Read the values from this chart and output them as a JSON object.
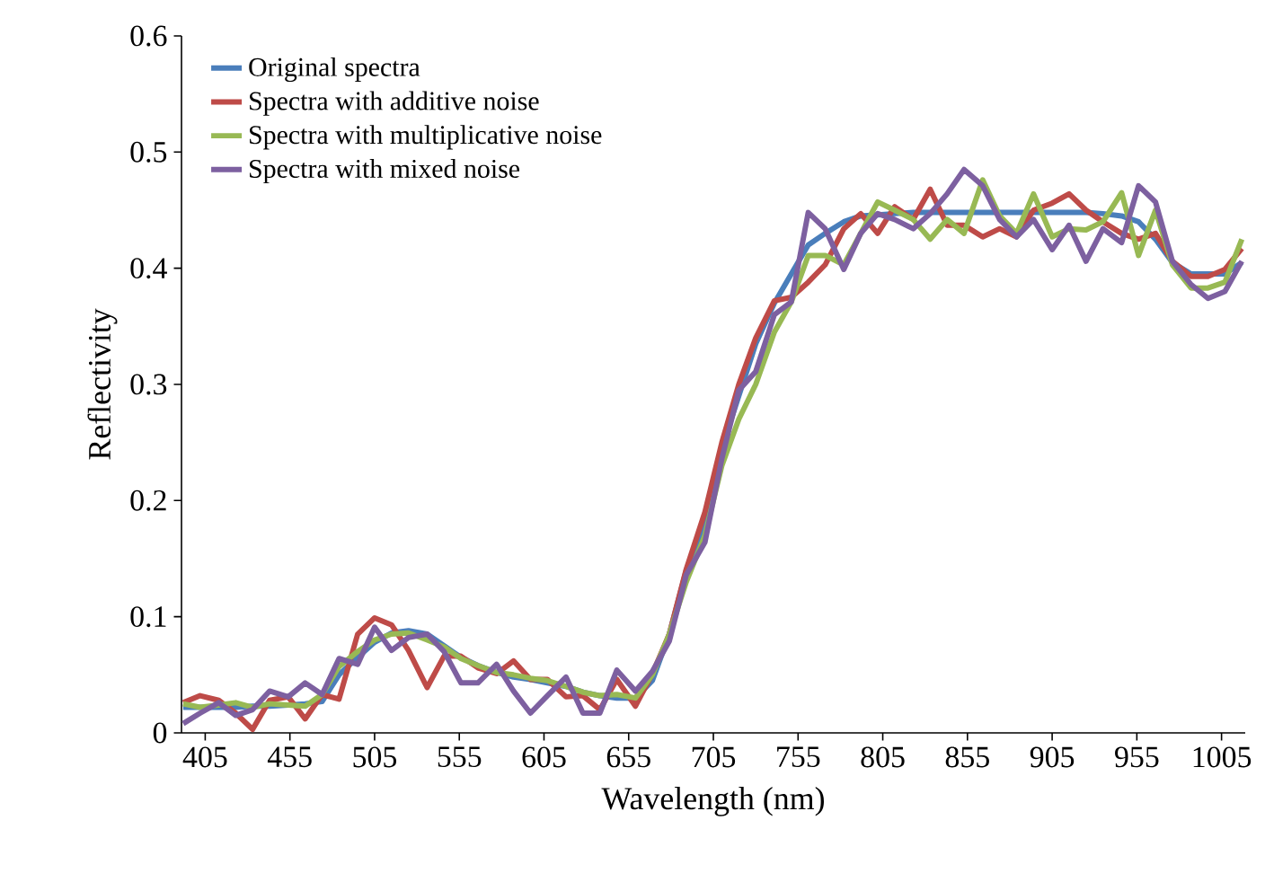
{
  "chart_data": {
    "type": "line",
    "xlabel": "Wavelength (nm)",
    "ylabel": "Reflectivity",
    "x": [
      392,
      402,
      413,
      423,
      433,
      443,
      454,
      464,
      474,
      484,
      495,
      505,
      515,
      525,
      536,
      546,
      556,
      566,
      577,
      587,
      597,
      607,
      618,
      628,
      638,
      648,
      659,
      669,
      679,
      689,
      700,
      710,
      720,
      730,
      741,
      751,
      761,
      771,
      782,
      792,
      802,
      812,
      823,
      833,
      843,
      853,
      864,
      874,
      884,
      894,
      905,
      915,
      925,
      935,
      946,
      956,
      966,
      976,
      987,
      997,
      1007,
      1017
    ],
    "series": [
      {
        "name": "Original spectra",
        "color": "#4a7ebb",
        "values": [
          0.022,
          0.022,
          0.022,
          0.022,
          0.023,
          0.023,
          0.024,
          0.025,
          0.027,
          0.05,
          0.065,
          0.078,
          0.086,
          0.088,
          0.085,
          0.075,
          0.065,
          0.058,
          0.052,
          0.048,
          0.046,
          0.043,
          0.04,
          0.035,
          0.032,
          0.03,
          0.03,
          0.045,
          0.085,
          0.14,
          0.18,
          0.245,
          0.29,
          0.335,
          0.37,
          0.395,
          0.42,
          0.43,
          0.44,
          0.445,
          0.446,
          0.447,
          0.448,
          0.448,
          0.448,
          0.448,
          0.448,
          0.448,
          0.448,
          0.448,
          0.448,
          0.448,
          0.448,
          0.447,
          0.445,
          0.44,
          0.425,
          0.405,
          0.395,
          0.395,
          0.395,
          0.405
        ]
      },
      {
        "name": "Spectra with additive noise",
        "color": "#be4b48",
        "values": [
          0.026,
          0.032,
          0.028,
          0.017,
          0.003,
          0.028,
          0.031,
          0.012,
          0.033,
          0.029,
          0.085,
          0.099,
          0.093,
          0.071,
          0.039,
          0.066,
          0.066,
          0.056,
          0.051,
          0.062,
          0.046,
          0.046,
          0.031,
          0.032,
          0.02,
          0.046,
          0.023,
          0.051,
          0.085,
          0.141,
          0.19,
          0.25,
          0.3,
          0.34,
          0.372,
          0.375,
          0.388,
          0.403,
          0.434,
          0.447,
          0.43,
          0.453,
          0.442,
          0.468,
          0.437,
          0.437,
          0.427,
          0.434,
          0.427,
          0.45,
          0.456,
          0.464,
          0.45,
          0.44,
          0.43,
          0.425,
          0.43,
          0.406,
          0.393,
          0.393,
          0.399,
          0.417
        ]
      },
      {
        "name": "Spectra with multiplicative noise",
        "color": "#98b954",
        "values": [
          0.025,
          0.022,
          0.024,
          0.026,
          0.022,
          0.025,
          0.024,
          0.023,
          0.033,
          0.057,
          0.07,
          0.08,
          0.085,
          0.086,
          0.08,
          0.074,
          0.064,
          0.058,
          0.052,
          0.05,
          0.047,
          0.045,
          0.04,
          0.035,
          0.032,
          0.033,
          0.03,
          0.05,
          0.085,
          0.13,
          0.17,
          0.23,
          0.27,
          0.3,
          0.345,
          0.371,
          0.411,
          0.411,
          0.403,
          0.43,
          0.457,
          0.45,
          0.442,
          0.425,
          0.442,
          0.43,
          0.476,
          0.445,
          0.43,
          0.464,
          0.427,
          0.434,
          0.433,
          0.44,
          0.465,
          0.411,
          0.45,
          0.403,
          0.383,
          0.383,
          0.388,
          0.425
        ]
      },
      {
        "name": "Spectra with mixed noise",
        "color": "#7d60a0",
        "values": [
          0.008,
          0.017,
          0.026,
          0.015,
          0.02,
          0.036,
          0.031,
          0.043,
          0.033,
          0.064,
          0.059,
          0.091,
          0.071,
          0.082,
          0.085,
          0.07,
          0.043,
          0.043,
          0.059,
          0.036,
          0.017,
          0.032,
          0.048,
          0.017,
          0.017,
          0.054,
          0.036,
          0.053,
          0.079,
          0.136,
          0.164,
          0.236,
          0.295,
          0.311,
          0.36,
          0.371,
          0.448,
          0.434,
          0.399,
          0.43,
          0.447,
          0.442,
          0.434,
          0.447,
          0.464,
          0.485,
          0.471,
          0.442,
          0.427,
          0.442,
          0.416,
          0.437,
          0.406,
          0.434,
          0.422,
          0.471,
          0.457,
          0.406,
          0.386,
          0.374,
          0.38,
          0.406
        ]
      }
    ],
    "xlim": [
      391,
      1019
    ],
    "ylim": [
      0,
      0.6
    ],
    "xticks": [
      405,
      455,
      505,
      555,
      605,
      655,
      705,
      755,
      805,
      855,
      905,
      955,
      1005
    ],
    "yticks": [
      0,
      0.1,
      0.2,
      0.3,
      0.4,
      0.5,
      0.6
    ],
    "grid": false,
    "legend": "top left",
    "marker": "none",
    "line_style": "solid"
  }
}
